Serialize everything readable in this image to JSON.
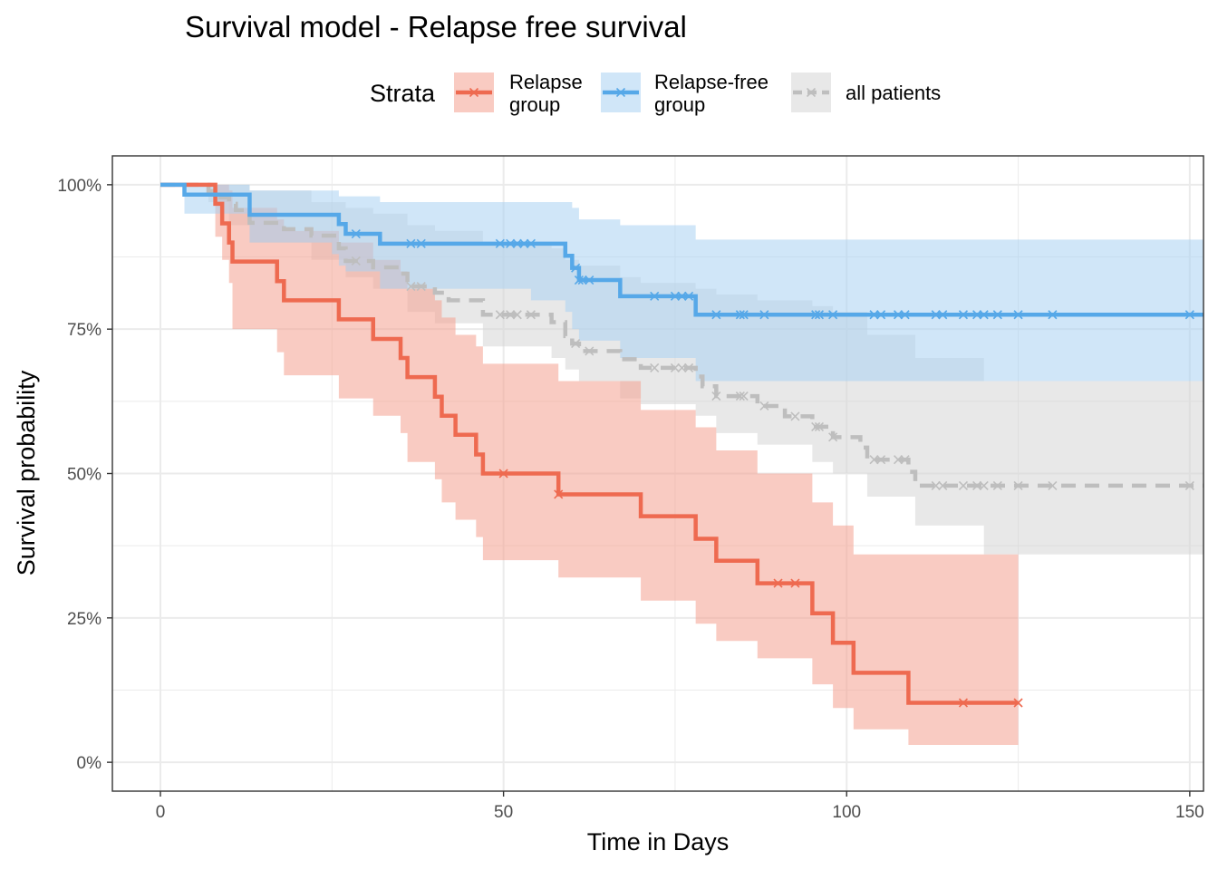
{
  "chart_data": {
    "type": "line",
    "title": "Survival model - Relapse free survival",
    "xlabel": "Time in Days",
    "ylabel": "Survival probability",
    "xlim": [
      -7,
      152
    ],
    "ylim": [
      -0.05,
      1.05
    ],
    "x_ticks": [
      0,
      50,
      100,
      150
    ],
    "x_tick_labels": [
      "0",
      "50",
      "100",
      "150"
    ],
    "y_ticks": [
      0,
      0.25,
      0.5,
      0.75,
      1.0
    ],
    "y_tick_labels": [
      "0%",
      "25%",
      "50%",
      "75%",
      "100%"
    ],
    "grid": true,
    "legend": {
      "title": "Strata",
      "position": "top",
      "entries": [
        {
          "label_lines": [
            "Relapse",
            "group"
          ],
          "series": "relapse"
        },
        {
          "label_lines": [
            "Relapse-free",
            "group"
          ],
          "series": "relapse_free"
        },
        {
          "label_lines": [
            "all patients"
          ],
          "series": "all"
        }
      ]
    },
    "series": [
      {
        "id": "relapse",
        "color": "#EE6A50",
        "band_color": "#F4A190",
        "dashed": false,
        "steps": [
          [
            0,
            1.0
          ],
          [
            7,
            1.0
          ],
          [
            8,
            0.967
          ],
          [
            9,
            0.933
          ],
          [
            10,
            0.9
          ],
          [
            10.5,
            0.867
          ],
          [
            17,
            0.833
          ],
          [
            18,
            0.8
          ],
          [
            26,
            0.767
          ],
          [
            31,
            0.733
          ],
          [
            35,
            0.7
          ],
          [
            36,
            0.667
          ],
          [
            40,
            0.633
          ],
          [
            41,
            0.6
          ],
          [
            43,
            0.567
          ],
          [
            46,
            0.533
          ],
          [
            47,
            0.5
          ],
          [
            58,
            0.464
          ],
          [
            70,
            0.426
          ],
          [
            78,
            0.387
          ],
          [
            81,
            0.349
          ],
          [
            87,
            0.31
          ],
          [
            95,
            0.258
          ],
          [
            98,
            0.207
          ],
          [
            101,
            0.155
          ],
          [
            109,
            0.103
          ],
          [
            125,
            0.103
          ]
        ],
        "band": [
          [
            0,
            1.0,
            1.0
          ],
          [
            7,
            1.0,
            1.0
          ],
          [
            8,
            0.91,
            1.0
          ],
          [
            9,
            0.87,
            1.0
          ],
          [
            10,
            0.83,
            0.99
          ],
          [
            10.5,
            0.75,
            0.96
          ],
          [
            17,
            0.71,
            0.94
          ],
          [
            18,
            0.67,
            0.92
          ],
          [
            26,
            0.63,
            0.9
          ],
          [
            31,
            0.6,
            0.87
          ],
          [
            35,
            0.57,
            0.85
          ],
          [
            36,
            0.52,
            0.82
          ],
          [
            40,
            0.49,
            0.8
          ],
          [
            41,
            0.45,
            0.77
          ],
          [
            43,
            0.42,
            0.74
          ],
          [
            46,
            0.39,
            0.72
          ],
          [
            47,
            0.35,
            0.69
          ],
          [
            58,
            0.32,
            0.66
          ],
          [
            70,
            0.28,
            0.61
          ],
          [
            78,
            0.24,
            0.58
          ],
          [
            81,
            0.21,
            0.54
          ],
          [
            87,
            0.18,
            0.5
          ],
          [
            95,
            0.135,
            0.45
          ],
          [
            98,
            0.094,
            0.41
          ],
          [
            101,
            0.057,
            0.36
          ],
          [
            109,
            0.03,
            0.36
          ],
          [
            125,
            0.03,
            0.36
          ]
        ],
        "censor_x": [
          50,
          58,
          90,
          92.5,
          117,
          125
        ]
      },
      {
        "id": "relapse_free",
        "color": "#56A8E8",
        "band_color": "#A9D1F3",
        "dashed": false,
        "steps": [
          [
            0,
            1.0
          ],
          [
            3.5,
            0.983
          ],
          [
            9,
            0.983
          ],
          [
            13,
            0.948
          ],
          [
            25,
            0.948
          ],
          [
            26,
            0.932
          ],
          [
            27,
            0.915
          ],
          [
            32,
            0.898
          ],
          [
            54,
            0.898
          ],
          [
            59,
            0.877
          ],
          [
            60,
            0.856
          ],
          [
            61,
            0.835
          ],
          [
            67,
            0.807
          ],
          [
            78,
            0.775
          ],
          [
            152,
            0.775
          ]
        ],
        "band": [
          [
            0,
            1.0,
            1.0
          ],
          [
            3.5,
            0.95,
            1.0
          ],
          [
            13,
            0.9,
            0.99
          ],
          [
            25,
            0.88,
            0.99
          ],
          [
            26,
            0.86,
            0.98
          ],
          [
            27,
            0.85,
            0.98
          ],
          [
            32,
            0.82,
            0.97
          ],
          [
            54,
            0.8,
            0.97
          ],
          [
            59,
            0.78,
            0.97
          ],
          [
            60,
            0.75,
            0.96
          ],
          [
            61,
            0.73,
            0.94
          ],
          [
            67,
            0.7,
            0.93
          ],
          [
            78,
            0.66,
            0.905
          ],
          [
            152,
            0.66,
            0.905
          ]
        ],
        "censor_x": [
          28.5,
          36.5,
          38,
          49.5,
          51,
          52,
          53,
          54,
          60.5,
          61,
          61.5,
          62.5,
          72,
          75,
          76,
          77,
          81,
          84.5,
          85,
          88,
          95.5,
          96,
          98,
          104,
          105,
          107.5,
          108.5,
          113,
          114,
          117,
          119,
          120,
          122,
          125,
          130,
          150
        ]
      },
      {
        "id": "all",
        "color": "#BEBEBE",
        "band_color": "#D6D6D6",
        "dashed": true,
        "steps": [
          [
            0,
            1.0
          ],
          [
            7,
            0.989
          ],
          [
            8,
            0.978
          ],
          [
            10,
            0.967
          ],
          [
            11,
            0.956
          ],
          [
            13,
            0.934
          ],
          [
            18,
            0.923
          ],
          [
            22,
            0.912
          ],
          [
            26,
            0.89
          ],
          [
            27,
            0.868
          ],
          [
            31,
            0.857
          ],
          [
            35,
            0.846
          ],
          [
            36,
            0.824
          ],
          [
            40,
            0.813
          ],
          [
            42,
            0.8
          ],
          [
            47,
            0.775
          ],
          [
            57,
            0.762
          ],
          [
            59,
            0.738
          ],
          [
            60,
            0.725
          ],
          [
            61,
            0.712
          ],
          [
            67,
            0.698
          ],
          [
            70,
            0.683
          ],
          [
            78,
            0.668
          ],
          [
            79,
            0.651
          ],
          [
            81,
            0.634
          ],
          [
            87,
            0.617
          ],
          [
            91,
            0.599
          ],
          [
            95,
            0.581
          ],
          [
            98,
            0.563
          ],
          [
            102,
            0.545
          ],
          [
            103,
            0.524
          ],
          [
            109,
            0.503
          ],
          [
            110,
            0.479
          ],
          [
            152,
            0.479
          ]
        ],
        "band": [
          [
            0,
            1.0,
            1.0
          ],
          [
            7,
            0.97,
            1.0
          ],
          [
            10,
            0.93,
            1.0
          ],
          [
            13,
            0.9,
            0.99
          ],
          [
            22,
            0.87,
            0.97
          ],
          [
            27,
            0.84,
            0.96
          ],
          [
            31,
            0.82,
            0.95
          ],
          [
            36,
            0.78,
            0.93
          ],
          [
            40,
            0.76,
            0.92
          ],
          [
            47,
            0.72,
            0.9
          ],
          [
            57,
            0.7,
            0.89
          ],
          [
            59,
            0.68,
            0.87
          ],
          [
            61,
            0.66,
            0.86
          ],
          [
            67,
            0.63,
            0.84
          ],
          [
            70,
            0.62,
            0.83
          ],
          [
            78,
            0.6,
            0.82
          ],
          [
            81,
            0.57,
            0.81
          ],
          [
            87,
            0.55,
            0.8
          ],
          [
            95,
            0.52,
            0.79
          ],
          [
            98,
            0.5,
            0.78
          ],
          [
            103,
            0.46,
            0.74
          ],
          [
            110,
            0.41,
            0.7
          ],
          [
            120,
            0.36,
            0.66
          ],
          [
            152,
            0.36,
            0.64
          ]
        ],
        "censor_x": [
          28.5,
          36.5,
          38,
          49.5,
          51,
          52,
          54,
          60.5,
          62.5,
          72,
          75,
          76,
          77,
          81,
          84.5,
          85,
          88,
          92.5,
          95.5,
          96,
          98,
          104,
          105,
          107.5,
          108.5,
          113,
          114,
          117,
          119,
          120,
          122,
          125,
          130,
          150
        ]
      }
    ]
  }
}
